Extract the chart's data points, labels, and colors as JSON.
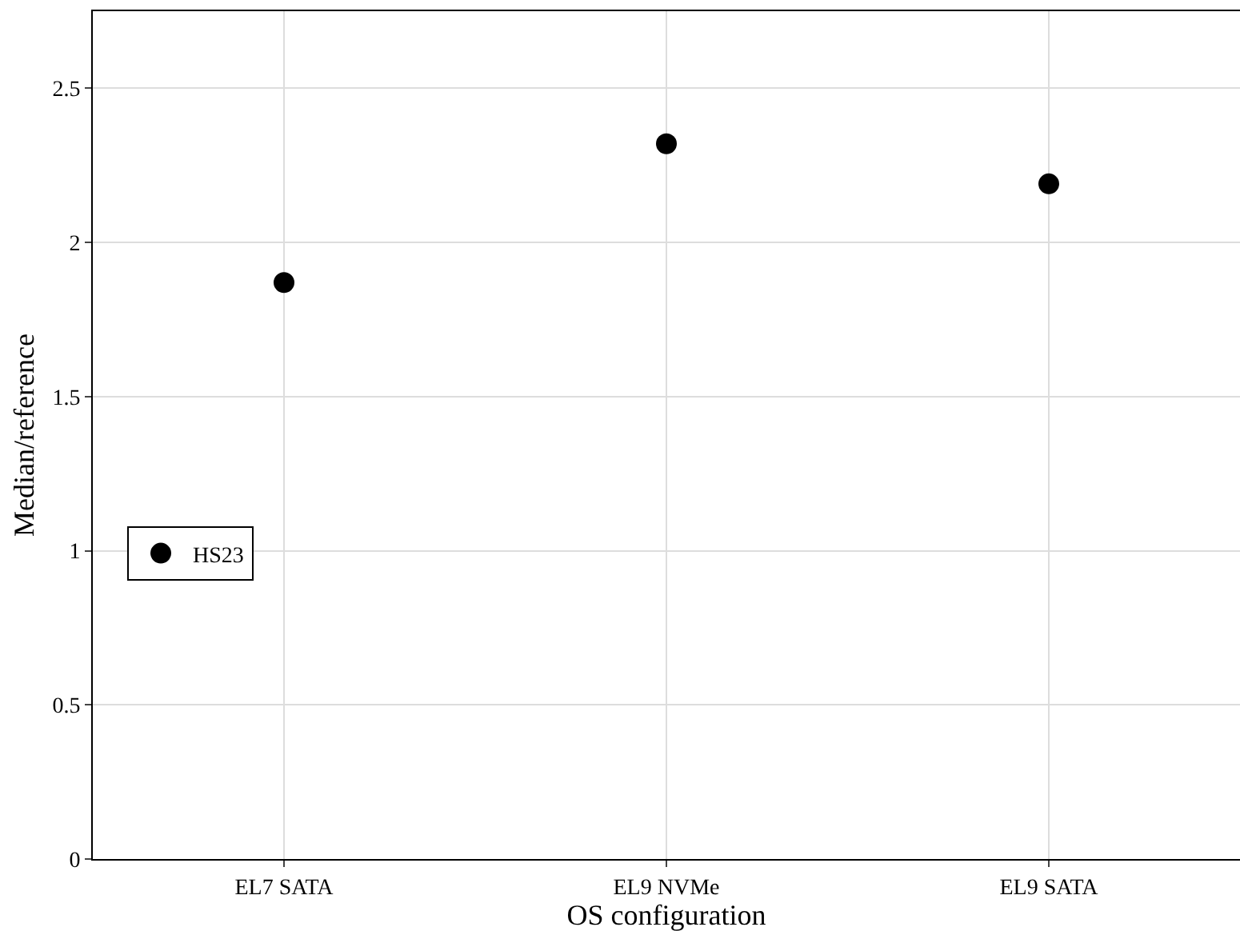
{
  "chart_data": {
    "type": "scatter",
    "xlabel": "OS configuration",
    "ylabel": "Median/reference",
    "categories": [
      "EL7 SATA",
      "EL9 NVMe",
      "EL9 SATA"
    ],
    "series": [
      {
        "name": "HS23",
        "color": "#000000",
        "values": [
          1.87,
          2.32,
          2.19
        ]
      }
    ],
    "ylim": [
      0,
      2.75
    ],
    "yticks": [
      0,
      0.5,
      1,
      1.5,
      2,
      2.5
    ],
    "grid": true,
    "legend": "left",
    "marker": "circle"
  }
}
